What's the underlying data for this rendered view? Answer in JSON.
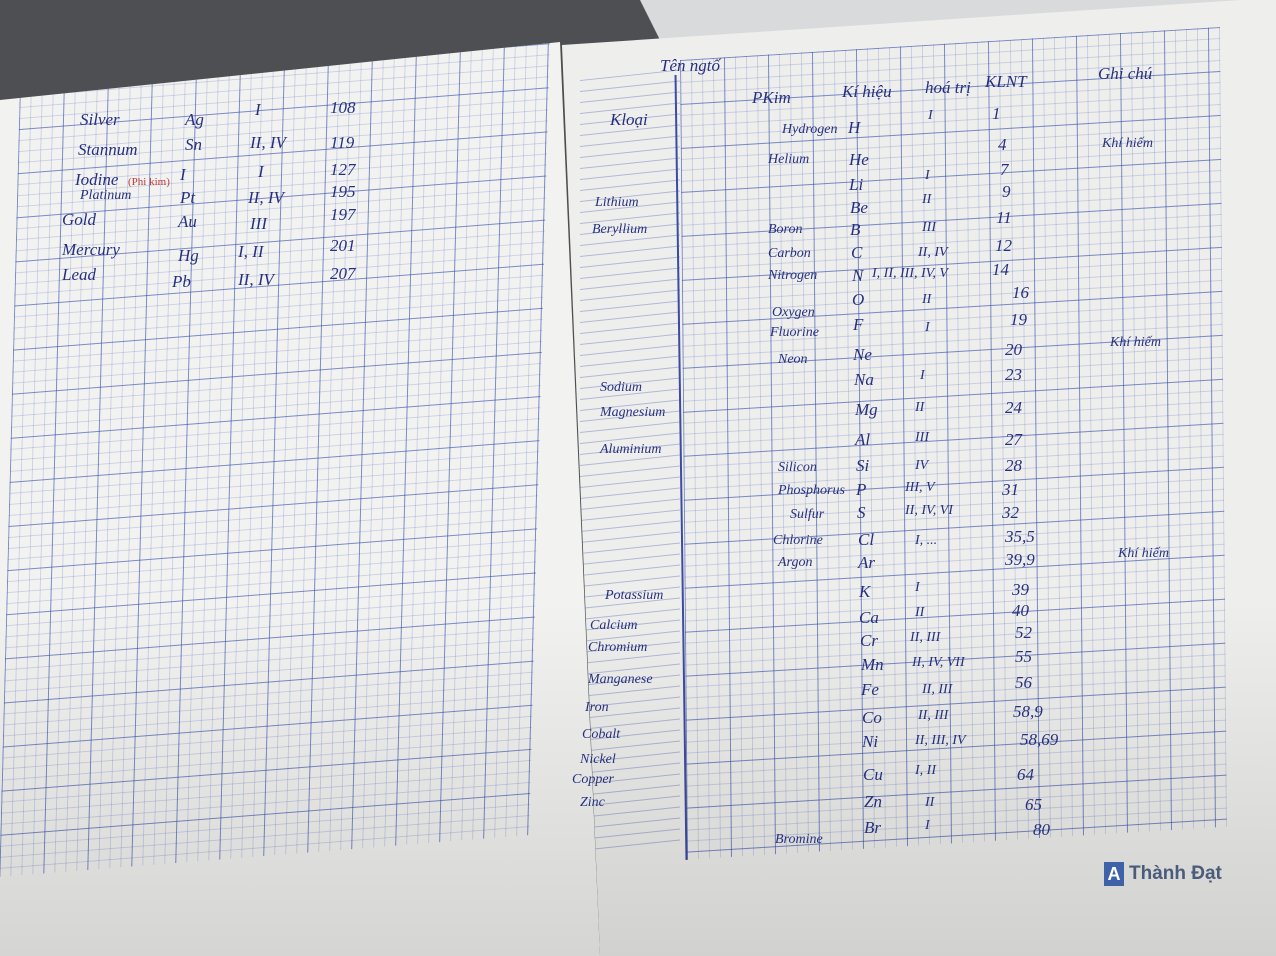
{
  "left_page": {
    "rows": [
      {
        "element": "Silver",
        "symbol": "Ag",
        "valence": "I",
        "mass": "108"
      },
      {
        "element": "Stannum",
        "symbol": "Sn",
        "valence": "II, IV",
        "mass": "119"
      },
      {
        "element": "Iodine",
        "note": "(Phi kim)",
        "symbol": "I",
        "valence": "I",
        "mass": "127"
      },
      {
        "element": "Platinum",
        "symbol": "Pt",
        "valence": "II, IV",
        "mass": "195"
      },
      {
        "element": "Gold",
        "symbol": "Au",
        "valence": "III",
        "mass": "197"
      },
      {
        "element": "Mercury",
        "symbol": "Hg",
        "valence": "I, II",
        "mass": "201"
      },
      {
        "element": "Lead",
        "symbol": "Pb",
        "valence": "II, IV",
        "mass": "207"
      }
    ]
  },
  "right_page": {
    "title": "Tên ngtố",
    "headers": {
      "metal": "Kloại",
      "nonmetal": "PKim",
      "symbol": "Kí hiệu",
      "valence": "hoá trị",
      "mass": "KLNT",
      "notes": "Ghi chú"
    },
    "metals": [
      "Lithium",
      "Beryllium",
      "Sodium",
      "Magnesium",
      "Aluminium",
      "Potassium",
      "Calcium",
      "Chromium",
      "Manganese",
      "Iron",
      "Cobalt",
      "Nickel",
      "Copper",
      "Zinc"
    ],
    "nonmetals": [
      "Hydrogen",
      "Helium",
      "Boron",
      "Carbon",
      "Nitrogen",
      "Oxygen",
      "Fluorine",
      "Neon",
      "Silicon",
      "Phosphorus",
      "Sulfur",
      "Chlorine",
      "Argon",
      "Bromine"
    ],
    "symbols": [
      "H",
      "He",
      "Li",
      "Be",
      "B",
      "C",
      "N",
      "O",
      "F",
      "Ne",
      "Na",
      "Mg",
      "Al",
      "Si",
      "P",
      "S",
      "Cl",
      "Ar",
      "K",
      "Ca",
      "Cr",
      "Mn",
      "Fe",
      "Co",
      "Ni",
      "Cu",
      "Zn",
      "Br"
    ],
    "valences": [
      "I",
      "I",
      "II",
      "III",
      "II, IV",
      "I, II, III, IV, V",
      "II",
      "I",
      "I",
      "II",
      "III",
      "IV",
      "III, V",
      "II, IV, VI",
      "I, ...",
      "I",
      "II",
      "II, III",
      "II, IV, VII",
      "II, III",
      "II, III",
      "II, III, IV",
      "I, II",
      "II",
      "I"
    ],
    "masses": [
      "1",
      "4",
      "7",
      "9",
      "11",
      "12",
      "14",
      "16",
      "19",
      "20",
      "23",
      "24",
      "27",
      "28",
      "31",
      "32",
      "35,5",
      "39,9",
      "39",
      "40",
      "52",
      "55",
      "56",
      "58,9",
      "58,69",
      "64",
      "65",
      "80"
    ],
    "notes": [
      "Khí hiếm",
      "Khí hiếm",
      "Khí hiếm"
    ]
  },
  "brand": {
    "mark": "A",
    "name": "Thành Đạt"
  }
}
